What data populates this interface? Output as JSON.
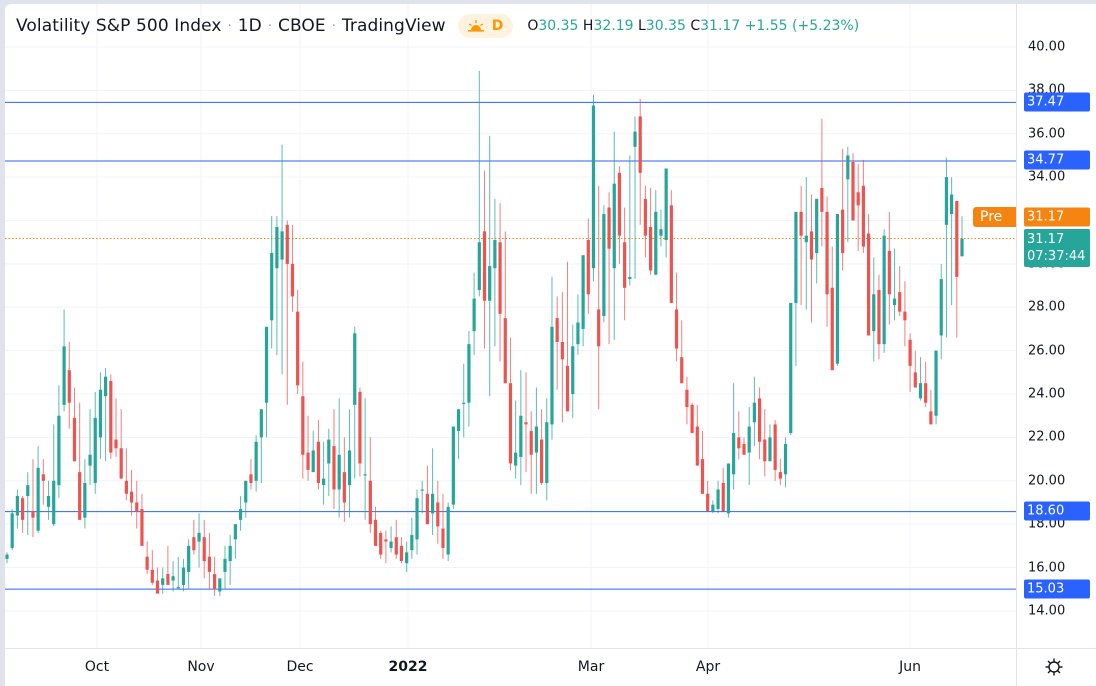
{
  "header": {
    "symbol_title": "Volatility S&P 500 Index",
    "interval": "1D",
    "exchange": "CBOE",
    "source": "TradingView",
    "session_icon": "sun-icon",
    "session_badge": "D",
    "ohlc": {
      "o_label": "O",
      "o": "30.35",
      "h_label": "H",
      "h": "32.19",
      "l_label": "L",
      "l": "30.35",
      "c_label": "C",
      "c": "31.17",
      "change": "+1.55 (+5.23%)"
    }
  },
  "price_axis": {
    "ticks": [
      "40.00",
      "38.00",
      "36.00",
      "34.00",
      "32.00",
      "30.00",
      "28.00",
      "26.00",
      "24.00",
      "22.00",
      "20.00",
      "18.00",
      "16.00",
      "14.00"
    ],
    "levels": [
      {
        "label": "37.47",
        "value": 37.47
      },
      {
        "label": "34.77",
        "value": 34.77
      },
      {
        "label": "18.60",
        "value": 18.6
      },
      {
        "label": "15.03",
        "value": 15.03
      }
    ],
    "pre_label": "Pre",
    "pre_price": "31.17",
    "last_price": "31.17",
    "countdown": "07:37:44"
  },
  "time_axis": {
    "labels": [
      {
        "label": "Oct",
        "x": 97,
        "bold": false
      },
      {
        "label": "Nov",
        "x": 201,
        "bold": false
      },
      {
        "label": "Dec",
        "x": 300,
        "bold": false
      },
      {
        "label": "2022",
        "x": 408,
        "bold": true
      },
      {
        "label": "Mar",
        "x": 591,
        "bold": false
      },
      {
        "label": "Apr",
        "x": 708,
        "bold": false
      },
      {
        "label": "Jun",
        "x": 910,
        "bold": false
      }
    ],
    "settings_icon": "gear-icon"
  },
  "colors": {
    "up": "#26a69a",
    "down": "#ef5350",
    "level_line": "#2962ff",
    "last_line": "#f68410",
    "grid": "#f0f3fa"
  },
  "chart_data": {
    "type": "candlestick",
    "title": "Volatility S&P 500 Index · 1D · CBOE",
    "xlabel": "",
    "ylabel": "",
    "ylim": [
      13.2,
      41.5
    ],
    "x_ticks": [
      "Oct",
      "Nov",
      "Dec",
      "2022",
      "Mar",
      "Apr",
      "Jun"
    ],
    "y_ticks": [
      14,
      16,
      18,
      20,
      22,
      24,
      26,
      28,
      30,
      32,
      34,
      36,
      38,
      40
    ],
    "horizontal_levels": [
      37.47,
      34.77,
      18.6,
      15.03
    ],
    "last": {
      "open": 30.35,
      "high": 32.19,
      "low": 30.35,
      "close": 31.17,
      "change": 1.55,
      "change_pct": 5.23
    },
    "candles": [
      [
        16.4,
        16.7,
        16.2,
        16.6
      ],
      [
        16.9,
        18.7,
        16.8,
        18.5
      ],
      [
        18.4,
        19.6,
        17.8,
        19.3
      ],
      [
        19.2,
        19.3,
        17.6,
        18.2
      ],
      [
        19.3,
        20.4,
        17.5,
        19.8
      ],
      [
        18.6,
        21.0,
        17.4,
        18.3
      ],
      [
        17.7,
        21.6,
        17.6,
        20.6
      ],
      [
        20.3,
        21.0,
        18.9,
        20.0
      ],
      [
        18.8,
        20.0,
        18.2,
        19.3
      ],
      [
        18.0,
        22.6,
        17.9,
        20.0
      ],
      [
        19.8,
        24.4,
        19.2,
        23.0
      ],
      [
        23.5,
        27.9,
        23.2,
        26.2
      ],
      [
        25.1,
        26.4,
        22.4,
        23.6
      ],
      [
        22.9,
        24.3,
        21.0,
        20.9
      ],
      [
        20.4,
        23.6,
        20.4,
        18.2
      ],
      [
        18.3,
        21.0,
        17.8,
        19.9
      ],
      [
        20.7,
        23.3,
        19.8,
        21.2
      ],
      [
        19.9,
        24.1,
        19.4,
        22.9
      ],
      [
        22.0,
        25.0,
        21.0,
        24.2
      ],
      [
        23.9,
        25.2,
        20.9,
        24.8
      ],
      [
        24.6,
        24.9,
        21.0,
        21.3
      ],
      [
        21.9,
        23.8,
        21.1,
        21.5
      ],
      [
        21.5,
        23.3,
        21.1,
        20.1
      ],
      [
        20.0,
        21.5,
        19.1,
        19.4
      ],
      [
        19.5,
        20.5,
        18.4,
        19.0
      ],
      [
        19.0,
        20.0,
        17.8,
        18.6
      ],
      [
        18.7,
        19.4,
        17.5,
        17.0
      ],
      [
        16.5,
        17.2,
        15.7,
        15.9
      ],
      [
        15.9,
        16.8,
        15.2,
        15.3
      ],
      [
        15.4,
        16.0,
        14.9,
        14.8
      ],
      [
        15.2,
        16.0,
        14.8,
        15.5
      ],
      [
        15.7,
        17.0,
        15.3,
        15.2
      ],
      [
        15.4,
        16.3,
        14.9,
        15.6
      ],
      [
        15.1,
        16.5,
        15.0,
        15.1
      ],
      [
        15.2,
        16.4,
        14.9,
        16.0
      ],
      [
        15.8,
        17.3,
        15.0,
        17.0
      ],
      [
        17.4,
        18.2,
        16.6,
        16.8
      ],
      [
        17.2,
        18.5,
        16.0,
        17.6
      ],
      [
        17.4,
        18.2,
        15.5,
        16.3
      ],
      [
        16.5,
        17.6,
        15.0,
        15.8
      ],
      [
        15.7,
        16.5,
        14.7,
        15.0
      ],
      [
        14.9,
        15.5,
        14.7,
        15.5
      ],
      [
        15.8,
        17.0,
        15.0,
        16.4
      ],
      [
        16.3,
        17.5,
        15.2,
        17.0
      ],
      [
        17.3,
        18.0,
        16.4,
        18.0
      ],
      [
        18.2,
        19.3,
        17.7,
        18.7
      ],
      [
        19.0,
        19.9,
        18.3,
        20.0
      ],
      [
        20.3,
        21.0,
        19.6,
        19.9
      ],
      [
        20.0,
        22.1,
        19.5,
        21.8
      ],
      [
        22.0,
        23.3,
        19.9,
        23.3
      ],
      [
        23.6,
        26.0,
        22.0,
        27.1
      ],
      [
        27.4,
        32.2,
        26.1,
        30.5
      ],
      [
        29.8,
        32.2,
        25.8,
        31.7
      ],
      [
        30.2,
        35.5,
        24.9,
        31.5
      ],
      [
        31.8,
        32.0,
        23.5,
        30.0
      ],
      [
        30.0,
        31.8,
        27.8,
        28.5
      ],
      [
        27.8,
        28.8,
        24.0,
        24.4
      ],
      [
        23.9,
        25.5,
        20.1,
        21.2
      ],
      [
        21.3,
        23.0,
        20.0,
        20.5
      ],
      [
        20.4,
        22.3,
        20.5,
        21.4
      ],
      [
        21.8,
        22.8,
        19.6,
        19.9
      ],
      [
        19.8,
        21.8,
        18.9,
        20.1
      ],
      [
        20.8,
        22.4,
        19.3,
        21.9
      ],
      [
        21.6,
        23.3,
        18.7,
        19.6
      ],
      [
        19.6,
        23.8,
        18.3,
        21.2
      ],
      [
        20.4,
        22.0,
        18.1,
        19.0
      ],
      [
        19.8,
        23.3,
        18.3,
        21.4
      ],
      [
        23.5,
        27.1,
        20.1,
        26.8
      ],
      [
        24.1,
        24.3,
        20.2,
        20.8
      ],
      [
        20.3,
        23.8,
        18.2,
        20.3
      ],
      [
        20.0,
        22.0,
        17.6,
        18.0
      ],
      [
        18.2,
        18.8,
        17.3,
        17.0
      ],
      [
        17.6,
        17.7,
        16.4,
        16.6
      ],
      [
        17.3,
        17.7,
        16.2,
        17.2
      ],
      [
        16.9,
        17.9,
        16.7,
        17.2
      ],
      [
        17.4,
        18.2,
        16.4,
        16.6
      ],
      [
        17.0,
        17.4,
        16.2,
        16.3
      ],
      [
        16.2,
        17.2,
        15.8,
        16.7
      ],
      [
        16.8,
        18.3,
        16.4,
        17.5
      ],
      [
        17.3,
        19.6,
        16.6,
        19.2
      ],
      [
        19.6,
        20.0,
        18.5,
        19.6
      ],
      [
        19.4,
        20.7,
        18.4,
        18.0
      ],
      [
        18.5,
        21.5,
        17.5,
        19.4
      ],
      [
        19.0,
        20.0,
        17.1,
        17.9
      ],
      [
        17.8,
        19.4,
        16.4,
        16.9
      ],
      [
        16.6,
        19.0,
        16.3,
        18.8
      ],
      [
        18.9,
        22.0,
        18.7,
        22.5
      ],
      [
        22.3,
        23.3,
        21.0,
        23.3
      ],
      [
        23.6,
        25.4,
        22.0,
        23.6
      ],
      [
        23.6,
        26.9,
        22.5,
        26.3
      ],
      [
        26.9,
        29.6,
        25.8,
        28.4
      ],
      [
        28.8,
        38.9,
        28.5,
        31.0
      ],
      [
        31.5,
        34.3,
        26.1,
        28.3
      ],
      [
        28.3,
        35.9,
        23.9,
        29.9
      ],
      [
        29.8,
        33.0,
        26.2,
        31.1
      ],
      [
        31.0,
        32.8,
        25.5,
        27.7
      ],
      [
        27.5,
        31.5,
        25.1,
        24.5
      ],
      [
        24.5,
        26.6,
        20.5,
        20.8
      ],
      [
        20.7,
        23.7,
        20.1,
        21.3
      ],
      [
        21.1,
        25.1,
        19.8,
        23.0
      ],
      [
        22.7,
        25.0,
        20.4,
        22.6
      ],
      [
        22.3,
        23.2,
        19.4,
        21.2
      ],
      [
        21.3,
        24.3,
        19.4,
        22.5
      ],
      [
        21.9,
        23.3,
        19.8,
        19.9
      ],
      [
        19.9,
        23.8,
        19.1,
        22.7
      ],
      [
        22.6,
        29.4,
        21.9,
        27.1
      ],
      [
        27.5,
        28.5,
        24.2,
        26.4
      ],
      [
        26.4,
        28.7,
        22.7,
        25.6
      ],
      [
        25.3,
        30.1,
        23.3,
        23.2
      ],
      [
        24.0,
        27.2,
        22.9,
        26.2
      ],
      [
        26.3,
        28.6,
        25.8,
        27.3
      ],
      [
        27.0,
        30.4,
        26.2,
        30.4
      ],
      [
        31.1,
        32.1,
        27.7,
        28.6
      ],
      [
        29.8,
        37.8,
        29.2,
        37.3
      ],
      [
        27.9,
        33.6,
        23.3,
        26.2
      ],
      [
        27.6,
        32.7,
        27.3,
        32.3
      ],
      [
        32.6,
        33.3,
        26.3,
        30.7
      ],
      [
        29.8,
        36.1,
        26.5,
        33.7
      ],
      [
        34.2,
        34.5,
        30.0,
        31.3
      ],
      [
        31.0,
        32.6,
        27.4,
        28.9
      ],
      [
        29.3,
        35.0,
        29.0,
        29.4
      ],
      [
        35.4,
        36.8,
        29.3,
        36.1
      ],
      [
        36.8,
        37.6,
        31.8,
        34.2
      ],
      [
        33.0,
        33.6,
        30.3,
        31.3
      ],
      [
        31.7,
        33.5,
        29.5,
        29.7
      ],
      [
        29.5,
        33.4,
        29.7,
        32.4
      ],
      [
        31.3,
        32.5,
        30.8,
        31.6
      ],
      [
        31.1,
        34.3,
        30.3,
        34.4
      ],
      [
        32.7,
        33.4,
        31.1,
        28.2
      ],
      [
        27.9,
        29.6,
        25.5,
        26.1
      ],
      [
        25.7,
        27.4,
        24.9,
        24.5
      ],
      [
        24.2,
        24.8,
        22.6,
        23.4
      ],
      [
        23.5,
        23.6,
        22.4,
        22.2
      ],
      [
        22.5,
        23.5,
        20.8,
        20.7
      ],
      [
        21.0,
        22.3,
        19.9,
        19.4
      ],
      [
        19.4,
        20.0,
        18.6,
        18.6
      ],
      [
        18.6,
        19.1,
        18.5,
        18.9
      ],
      [
        18.7,
        20.0,
        18.5,
        19.6
      ],
      [
        19.9,
        20.6,
        19.3,
        18.6
      ],
      [
        18.5,
        20.6,
        18.3,
        20.8
      ],
      [
        20.3,
        24.5,
        19.6,
        22.2
      ],
      [
        22.0,
        23.2,
        21.0,
        21.5
      ],
      [
        21.7,
        22.0,
        21.3,
        21.2
      ],
      [
        21.3,
        23.4,
        19.8,
        22.5
      ],
      [
        22.7,
        24.8,
        21.6,
        23.6
      ],
      [
        23.8,
        24.3,
        21.0,
        21.8
      ],
      [
        21.9,
        23.3,
        20.2,
        20.9
      ],
      [
        20.9,
        22.6,
        21.5,
        22.0
      ],
      [
        22.6,
        22.8,
        20.0,
        20.5
      ],
      [
        20.4,
        21.0,
        19.8,
        20.1
      ],
      [
        20.3,
        22.0,
        19.7,
        21.7
      ],
      [
        22.2,
        26.1,
        22.1,
        28.2
      ],
      [
        28.2,
        31.9,
        25.3,
        32.4
      ],
      [
        32.4,
        33.6,
        28.1,
        31.3
      ],
      [
        31.0,
        34.0,
        27.9,
        31.3
      ],
      [
        31.5,
        33.2,
        27.3,
        30.2
      ],
      [
        30.5,
        32.9,
        29.1,
        33.0
      ],
      [
        33.5,
        36.7,
        30.8,
        32.4
      ],
      [
        32.4,
        33.1,
        27.1,
        28.6
      ],
      [
        28.9,
        30.8,
        25.2,
        25.1
      ],
      [
        25.4,
        31.5,
        25.3,
        32.3
      ],
      [
        32.5,
        35.3,
        29.7,
        30.5
      ],
      [
        33.9,
        35.4,
        31.0,
        35.0
      ],
      [
        34.7,
        35.1,
        32.5,
        32.0
      ],
      [
        33.3,
        34.6,
        30.6,
        32.7
      ],
      [
        33.6,
        34.8,
        30.5,
        30.8
      ],
      [
        31.4,
        32.3,
        27.7,
        26.7
      ],
      [
        26.9,
        30.3,
        25.5,
        28.6
      ],
      [
        28.8,
        29.5,
        25.6,
        26.3
      ],
      [
        26.3,
        31.6,
        25.9,
        31.3
      ],
      [
        30.6,
        32.4,
        27.2,
        28.6
      ],
      [
        28.1,
        30.7,
        27.4,
        28.4
      ],
      [
        28.7,
        29.9,
        27.6,
        27.8
      ],
      [
        27.8,
        29.2,
        26.2,
        27.4
      ],
      [
        26.5,
        26.8,
        24.1,
        25.3
      ],
      [
        25.0,
        26.0,
        24.5,
        24.3
      ],
      [
        23.8,
        25.7,
        23.7,
        24.5
      ],
      [
        24.5,
        25.5,
        23.4,
        23.6
      ],
      [
        23.2,
        24.2,
        22.7,
        22.6
      ],
      [
        23.0,
        25.6,
        22.6,
        26.0
      ],
      [
        26.7,
        30.0,
        25.6,
        29.3
      ],
      [
        31.8,
        34.9,
        26.6,
        34.0
      ],
      [
        32.3,
        34.0,
        28.1,
        33.2
      ],
      [
        32.9,
        32.7,
        26.6,
        29.4
      ],
      [
        30.35,
        32.19,
        30.35,
        31.17
      ]
    ]
  }
}
